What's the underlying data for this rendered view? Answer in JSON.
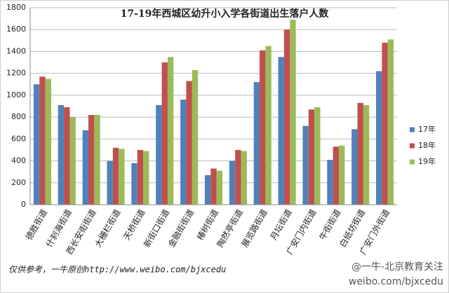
{
  "chart_data": {
    "type": "bar",
    "title": "17-19年西城区幼升小入学各街道出生落户人数",
    "categories": [
      "德胜街道",
      "什刹海街道",
      "西长安街街道",
      "大栅栏街道",
      "天桥街道",
      "新街口街道",
      "金融街街道",
      "椿树街道",
      "陶然亭街道",
      "展览路街道",
      "月坛街道",
      "广安门内街道",
      "牛街街道",
      "白纸坊街道",
      "广安门外街道"
    ],
    "series": [
      {
        "name": "17年",
        "color": "#4f81bd",
        "values": [
          1100,
          910,
          680,
          400,
          380,
          910,
          960,
          270,
          400,
          1120,
          1350,
          720,
          410,
          690,
          1220
        ]
      },
      {
        "name": "18年",
        "color": "#c0504d",
        "values": [
          1170,
          890,
          820,
          520,
          500,
          1300,
          1130,
          330,
          500,
          1410,
          1600,
          870,
          530,
          930,
          1480
        ]
      },
      {
        "name": "19年",
        "color": "#9bbb59",
        "values": [
          1150,
          800,
          820,
          510,
          490,
          1350,
          1230,
          310,
          490,
          1450,
          1690,
          890,
          540,
          910,
          1510
        ]
      }
    ],
    "ylim": [
      0,
      1800
    ],
    "yticks": [
      0,
      200,
      400,
      600,
      800,
      1000,
      1200,
      1400,
      1600,
      1800
    ],
    "grid": true,
    "legend": "right",
    "source": "仅供参考，一牛原创http://www.weibo.com/bjxcedu",
    "watermark": [
      "@一牛-北京教育关注",
      "weibo.com/bjxcedu"
    ]
  }
}
